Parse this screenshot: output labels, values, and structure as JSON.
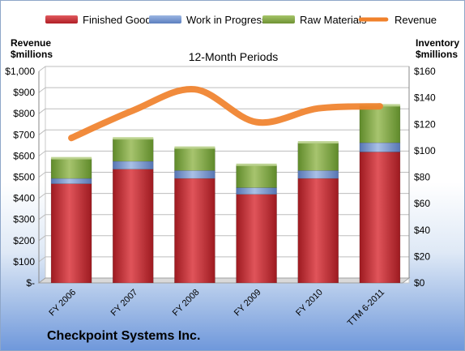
{
  "chart_data": {
    "type": "bar",
    "subtitle": "12-Month Periods",
    "company": "Checkpoint Systems Inc.",
    "categories": [
      "FY 2006",
      "FY 2007",
      "FY 2008",
      "FY 2009",
      "FY 2010",
      "TTM 6-2011"
    ],
    "left_axis": {
      "title_line1": "Revenue",
      "title_line2": "$millions",
      "ylim": [
        0,
        1000
      ],
      "ticks": [
        "$-",
        "$100",
        "$200",
        "$300",
        "$400",
        "$500",
        "$600",
        "$700",
        "$800",
        "$900",
        "$1,000"
      ]
    },
    "right_axis": {
      "title_line1": "Inventory",
      "title_line2": "$millions",
      "ylim": [
        0,
        160
      ],
      "ticks": [
        "$0",
        "$20",
        "$40",
        "$60",
        "$80",
        "$100",
        "$120",
        "$140",
        "$160"
      ]
    },
    "series": [
      {
        "name": "Finished Goods",
        "type": "bar",
        "axis": "right",
        "color": "#c0272d",
        "values": [
          75,
          86,
          79,
          67,
          79,
          99
        ]
      },
      {
        "name": "Work in Progress",
        "type": "bar",
        "axis": "right",
        "color": "#6c8fc9",
        "values": [
          4,
          6,
          6,
          5,
          6,
          7
        ]
      },
      {
        "name": "Raw Materials",
        "type": "bar",
        "axis": "right",
        "color": "#7ea23e",
        "values": [
          15,
          17,
          17,
          17,
          21,
          28
        ]
      },
      {
        "name": "Revenue",
        "type": "line",
        "axis": "left",
        "color": "#f0812b",
        "values": [
          685,
          815,
          915,
          760,
          825,
          835
        ]
      }
    ],
    "grid": true,
    "legend_position": "top"
  }
}
